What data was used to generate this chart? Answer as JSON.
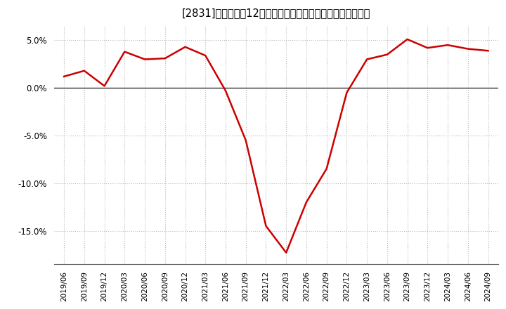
{
  "title": "[2831]　売上高の12か月移動合計の対前年同期増減率の推移",
  "line_color": "#cc0000",
  "background_color": "#ffffff",
  "plot_bg_color": "#ffffff",
  "grid_color": "#bbbbbb",
  "x_labels": [
    "2019/06",
    "2019/09",
    "2019/12",
    "2020/03",
    "2020/06",
    "2020/09",
    "2020/12",
    "2021/03",
    "2021/06",
    "2021/09",
    "2021/12",
    "2022/03",
    "2022/06",
    "2022/09",
    "2022/12",
    "2023/03",
    "2023/06",
    "2023/09",
    "2023/12",
    "2024/03",
    "2024/06",
    "2024/09"
  ],
  "y_values": [
    1.2,
    1.8,
    0.2,
    3.8,
    3.0,
    3.1,
    4.3,
    3.4,
    -0.3,
    -5.5,
    -14.5,
    -17.3,
    -12.0,
    -8.5,
    -0.5,
    3.0,
    3.5,
    5.1,
    4.2,
    4.5,
    4.1,
    3.9
  ],
  "ylim": [
    -18.5,
    6.5
  ],
  "yticks": [
    -15.0,
    -10.0,
    -5.0,
    0.0,
    5.0
  ],
  "zero_line_color": "#333333",
  "line_width": 1.8
}
